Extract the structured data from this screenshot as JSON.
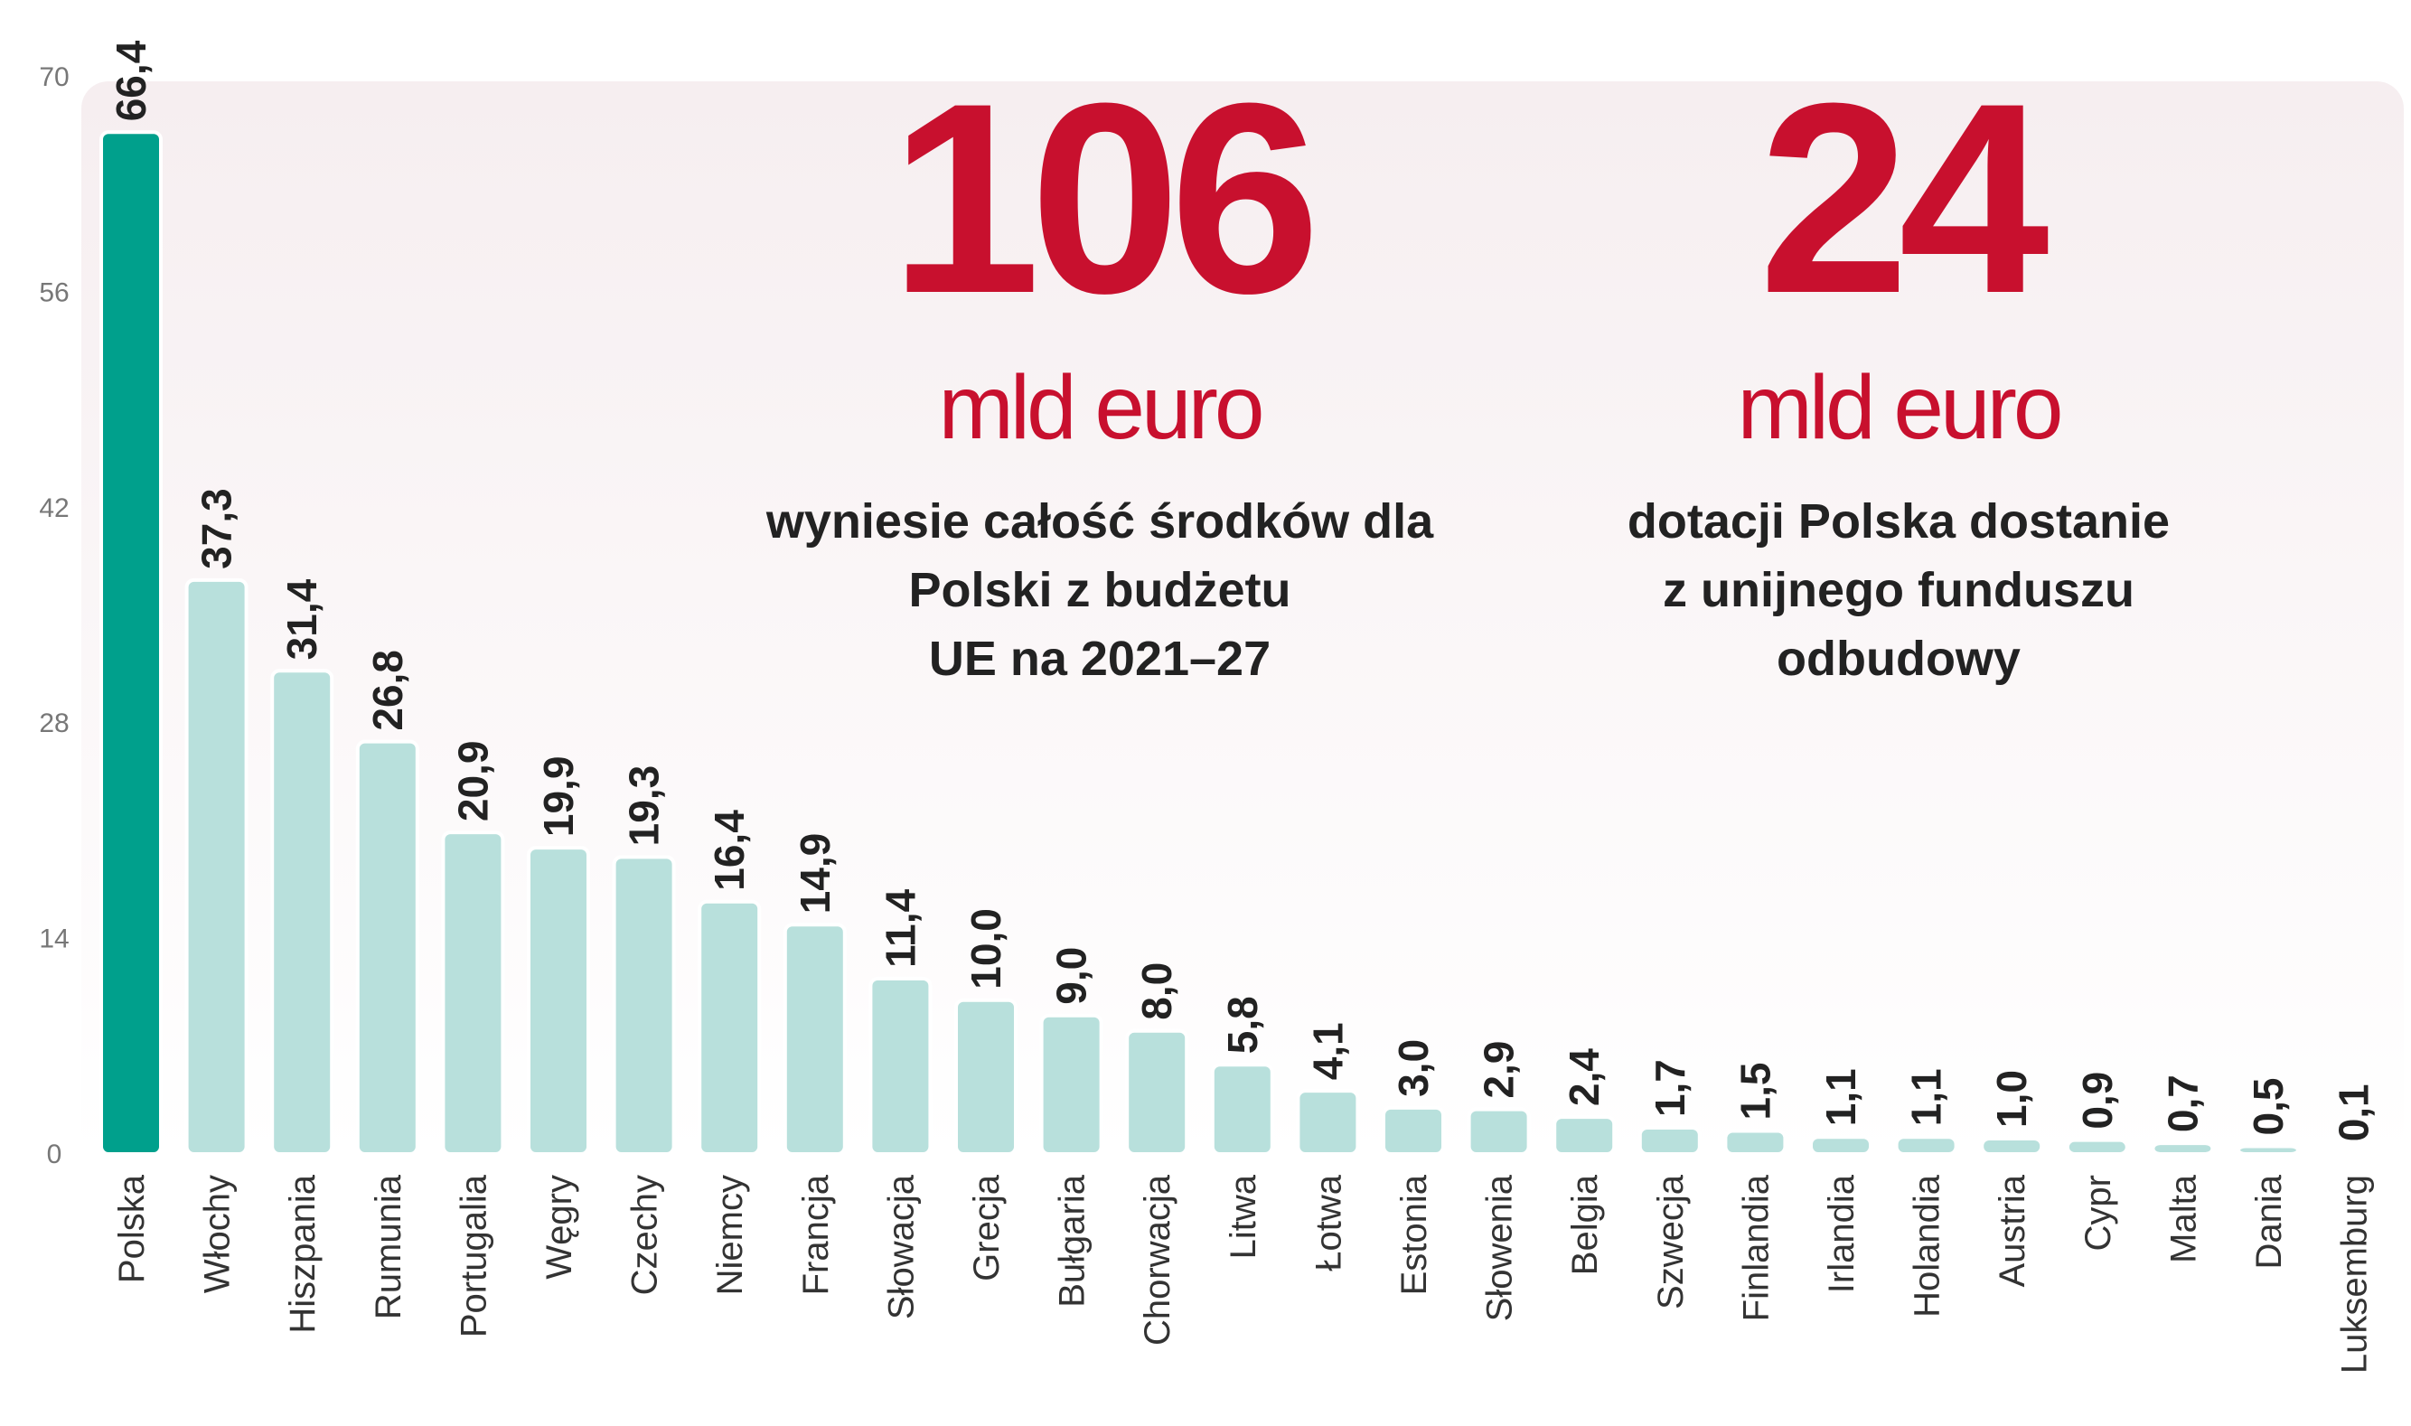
{
  "chart_data": {
    "type": "bar",
    "categories": [
      "Polska",
      "Włochy",
      "Hiszpania",
      "Rumunia",
      "Portugalia",
      "Węgry",
      "Czechy",
      "Niemcy",
      "Francja",
      "Słowacja",
      "Grecja",
      "Bułgaria",
      "Chorwacja",
      "Litwa",
      "Łotwa",
      "Estonia",
      "Słowenia",
      "Belgia",
      "Szwecja",
      "Finlandia",
      "Irlandia",
      "Holandia",
      "Austria",
      "Cypr",
      "Malta",
      "Dania",
      "Luksemburg"
    ],
    "values": [
      66.4,
      37.3,
      31.4,
      26.8,
      20.9,
      19.9,
      19.3,
      16.4,
      14.9,
      11.4,
      10.0,
      9.0,
      8.0,
      5.8,
      4.1,
      3.0,
      2.9,
      2.4,
      1.7,
      1.5,
      1.1,
      1.1,
      1.0,
      0.9,
      0.7,
      0.5,
      0.1
    ],
    "value_labels": [
      "66,4",
      "37,3",
      "31,4",
      "26,8",
      "20,9",
      "19,9",
      "19,3",
      "16,4",
      "14,9",
      "11,4",
      "10,0",
      "9,0",
      "8,0",
      "5,8",
      "4,1",
      "3,0",
      "2,9",
      "2,4",
      "1,7",
      "1,5",
      "1,1",
      "1,1",
      "1,0",
      "0,9",
      "0,7",
      "0,5",
      "0,1"
    ],
    "colors": [
      "#00a08c",
      "#b8e0dc",
      "#b8e0dc",
      "#b8e0dc",
      "#b8e0dc",
      "#b8e0dc",
      "#b8e0dc",
      "#b8e0dc",
      "#b8e0dc",
      "#b8e0dc",
      "#b8e0dc",
      "#b8e0dc",
      "#b8e0dc",
      "#b8e0dc",
      "#b8e0dc",
      "#b8e0dc",
      "#b8e0dc",
      "#b8e0dc",
      "#b8e0dc",
      "#b8e0dc",
      "#b8e0dc",
      "#b8e0dc",
      "#b8e0dc",
      "#b8e0dc",
      "#b8e0dc",
      "#b8e0dc",
      "#b8e0dc"
    ],
    "ylim": [
      0,
      70
    ],
    "yticks": [
      0,
      14,
      28,
      42,
      56,
      70
    ],
    "grid": false,
    "annotations": [
      {
        "number": "106",
        "unit": "mld euro",
        "lines": [
          "wyniesie całość środków dla",
          "Polski z budżetu",
          "UE na 2021–27"
        ]
      },
      {
        "number": "24",
        "unit": "mld euro",
        "lines": [
          "dotacji Polska dostanie",
          "z unijnego funduszu",
          "odbudowy"
        ]
      }
    ]
  }
}
